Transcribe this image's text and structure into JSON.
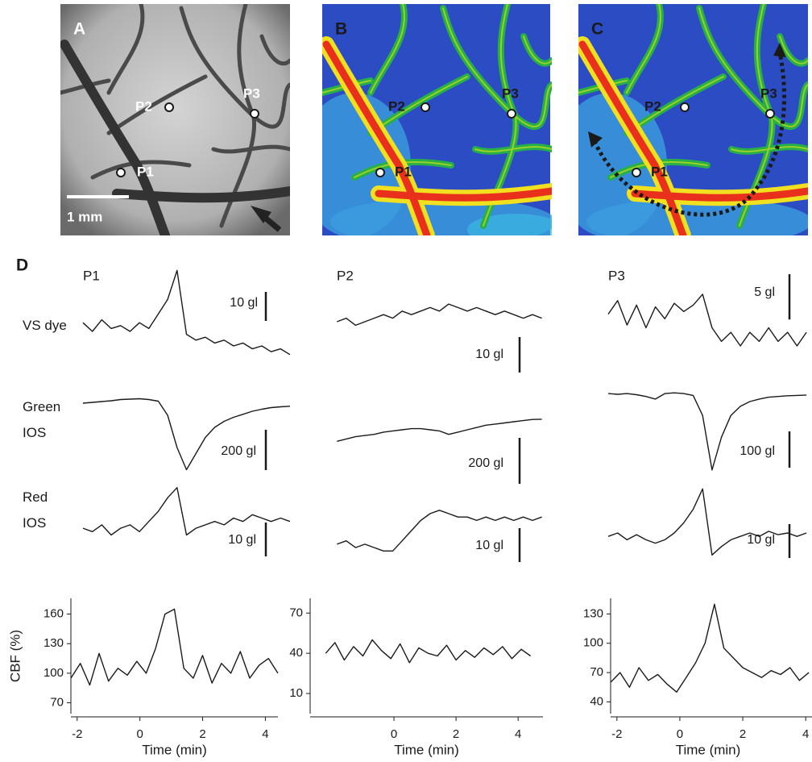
{
  "images": [
    {
      "label": "A",
      "points": [
        "P1",
        "P2",
        "P3"
      ],
      "scale_bar": "1 mm"
    },
    {
      "label": "B",
      "points": [
        "P1",
        "P2",
        "P3"
      ]
    },
    {
      "label": "C",
      "points": [
        "P1",
        "P2",
        "P3"
      ]
    }
  ],
  "panel_label": "D",
  "columns": [
    "P1",
    "P2",
    "P3"
  ],
  "rows": [
    "VS dye",
    "Green IOS",
    "Red IOS"
  ],
  "chart_data": [
    {
      "type": "line",
      "x": [
        -2.2,
        -1.9,
        -1.6,
        -1.3,
        -1.0,
        -0.7,
        -0.4,
        -0.1,
        0.2,
        0.5,
        0.8,
        1.1,
        1.4,
        1.7,
        2.0,
        2.3,
        2.6,
        2.9,
        3.2,
        3.5,
        3.8,
        4.1,
        4.4
      ],
      "values": [
        1,
        -2,
        2,
        -1,
        0,
        -2,
        1,
        -1,
        4,
        9,
        19,
        -3,
        -5,
        -4,
        -6,
        -5,
        -7,
        -6,
        -8,
        -7,
        -9,
        -8,
        -10
      ],
      "ylim": [
        -17,
        20.5
      ],
      "scale_bar": {
        "value": 10,
        "label": "10 gl"
      },
      "color": "#1a1a1a"
    },
    {
      "type": "line",
      "x": [
        -2.2,
        -1.9,
        -1.6,
        -1.3,
        -1.0,
        -0.7,
        -0.4,
        -0.1,
        0.2,
        0.5,
        0.8,
        1.1,
        1.4,
        1.7,
        2.0,
        2.3,
        2.6,
        2.9,
        3.2,
        3.5,
        3.8,
        4.1,
        4.4
      ],
      "values": [
        0,
        4,
        8,
        12,
        18,
        20,
        22,
        18,
        10,
        -60,
        -220,
        -330,
        -250,
        -170,
        -120,
        -90,
        -70,
        -55,
        -40,
        -30,
        -22,
        -18,
        -15
      ],
      "ylim": [
        -360,
        80
      ],
      "scale_bar": {
        "value": 200,
        "label": "200 gl"
      },
      "color": "#1a1a1a"
    },
    {
      "type": "line",
      "x": [
        -2.2,
        -1.9,
        -1.6,
        -1.3,
        -1.0,
        -0.7,
        -0.4,
        -0.1,
        0.2,
        0.5,
        0.8,
        1.1,
        1.4,
        1.7,
        2.0,
        2.3,
        2.6,
        2.9,
        3.2,
        3.5,
        3.8,
        4.1,
        4.4
      ],
      "values": [
        0,
        -1,
        1,
        -2,
        0,
        1,
        -1,
        2,
        5,
        9,
        12,
        -2,
        0,
        1,
        2,
        1,
        3,
        2,
        4,
        3,
        2,
        3,
        2
      ],
      "ylim": [
        -8.3,
        14.3
      ],
      "scale_bar": {
        "value": 10,
        "label": "10 gl"
      },
      "color": "#1a1a1a"
    },
    {
      "type": "line",
      "x": [
        -2.2,
        -1.9,
        -1.6,
        -1.3,
        -1.0,
        -0.7,
        -0.4,
        -0.1,
        0.2,
        0.5,
        0.8,
        1.1,
        1.4,
        1.7,
        2.0,
        2.3,
        2.6,
        2.9,
        3.2,
        3.5,
        3.8,
        4.1,
        4.4
      ],
      "values": [
        95,
        110,
        88,
        120,
        92,
        105,
        98,
        112,
        100,
        125,
        160,
        165,
        105,
        95,
        118,
        90,
        110,
        100,
        122,
        95,
        108,
        115,
        100
      ],
      "xlim": [
        -2.2,
        4.4
      ],
      "ylim": [
        59,
        176
      ],
      "xticks": [
        -2,
        0,
        2,
        4
      ],
      "yticks": [
        70,
        100,
        130,
        160
      ],
      "xlabel": "Time (min)",
      "ylabel": "CBF (%)",
      "color": "#1a1a1a"
    },
    {
      "type": "line",
      "x": [
        -2.2,
        -1.9,
        -1.6,
        -1.3,
        -1.0,
        -0.7,
        -0.4,
        -0.1,
        0.2,
        0.5,
        0.8,
        1.1,
        1.4,
        1.7,
        2.0,
        2.3,
        2.6,
        2.9,
        3.2,
        3.5,
        3.8,
        4.1,
        4.4
      ],
      "values": [
        0,
        1,
        -1,
        0,
        1,
        2,
        1,
        3,
        2,
        3,
        4,
        3,
        5,
        4,
        3,
        4,
        3,
        2,
        3,
        2,
        1,
        2,
        1
      ],
      "ylim": [
        -15,
        15.7
      ],
      "scale_bar": {
        "value": 10,
        "label": "10 gl"
      },
      "color": "#1a1a1a"
    },
    {
      "type": "line",
      "x": [
        -2.2,
        -1.9,
        -1.6,
        -1.3,
        -1.0,
        -0.7,
        -0.4,
        -0.1,
        0.2,
        0.5,
        0.8,
        1.1,
        1.4,
        1.7,
        2.0,
        2.3,
        2.6,
        2.9,
        3.2,
        3.5,
        3.8,
        4.1,
        4.4
      ],
      "values": [
        0,
        10,
        20,
        25,
        30,
        40,
        45,
        50,
        55,
        55,
        50,
        45,
        30,
        40,
        50,
        60,
        70,
        75,
        80,
        85,
        90,
        95,
        96
      ],
      "ylim": [
        -150,
        236
      ],
      "scale_bar": {
        "value": 200,
        "label": "200 gl"
      },
      "color": "#1a1a1a"
    },
    {
      "type": "line",
      "x": [
        -2.2,
        -1.9,
        -1.6,
        -1.3,
        -1.0,
        -0.7,
        -0.4,
        -0.1,
        0.2,
        0.5,
        0.8,
        1.1,
        1.4,
        1.7,
        2.0,
        2.3,
        2.6,
        2.9,
        3.2,
        3.5,
        3.8,
        4.1,
        4.4
      ],
      "values": [
        0,
        1,
        -1,
        0,
        -1,
        -2,
        -2,
        1,
        4,
        7,
        9,
        10,
        9,
        8,
        8,
        7,
        8,
        7,
        8,
        7,
        8,
        7,
        8
      ],
      "ylim": [
        -3.6,
        19
      ],
      "scale_bar": {
        "value": 10,
        "label": "10 gl"
      },
      "color": "#1a1a1a"
    },
    {
      "type": "line",
      "x": [
        -2.2,
        -1.9,
        -1.6,
        -1.3,
        -1.0,
        -0.7,
        -0.4,
        -0.1,
        0.2,
        0.5,
        0.8,
        1.1,
        1.4,
        1.7,
        2.0,
        2.3,
        2.6,
        2.9,
        3.2,
        3.5,
        3.8,
        4.1,
        4.4
      ],
      "values": [
        40,
        48,
        35,
        45,
        38,
        50,
        42,
        36,
        47,
        33,
        44,
        40,
        38,
        46,
        35,
        42,
        37,
        44,
        39,
        45,
        36,
        43,
        38
      ],
      "xlim": [
        -2.7,
        4.8
      ],
      "ylim": [
        -5,
        81
      ],
      "xticks": [
        0,
        2,
        4
      ],
      "yticks": [
        10,
        40,
        70
      ],
      "xlabel": "Time (min)",
      "color": "#1a1a1a"
    },
    {
      "type": "line",
      "x": [
        -2.2,
        -1.9,
        -1.6,
        -1.3,
        -1.0,
        -0.7,
        -0.4,
        -0.1,
        0.2,
        0.5,
        0.8,
        1.1,
        1.4,
        1.7,
        2.0,
        2.3,
        2.6,
        2.9,
        3.2,
        3.5,
        3.8,
        4.1
      ],
      "values": [
        0,
        1.5,
        -1.2,
        1,
        -1.5,
        0.8,
        -0.5,
        1.2,
        0.3,
        1,
        2.2,
        -1.5,
        -3,
        -2,
        -3.5,
        -2,
        -3,
        -1.5,
        -3,
        -2,
        -3.5,
        -2
      ],
      "ylim": [
        -6.7,
        5.3
      ],
      "scale_bar": {
        "value": 5,
        "label": "5 gl"
      },
      "color": "#1a1a1a"
    },
    {
      "type": "line",
      "x": [
        -2.2,
        -1.9,
        -1.6,
        -1.3,
        -1.0,
        -0.7,
        -0.4,
        -0.1,
        0.2,
        0.5,
        0.8,
        1.1,
        1.4,
        1.7,
        2.0,
        2.3,
        2.6,
        2.9,
        3.2,
        3.5,
        3.8,
        4.1
      ],
      "values": [
        0,
        -2,
        0,
        -3,
        -8,
        -15,
        0,
        2,
        0,
        -5,
        -60,
        -210,
        -120,
        -60,
        -35,
        -22,
        -15,
        -10,
        -8,
        -6,
        -5,
        -4
      ],
      "ylim": [
        -226,
        18
      ],
      "scale_bar": {
        "value": 100,
        "label": "100 gl"
      },
      "color": "#1a1a1a"
    },
    {
      "type": "line",
      "x": [
        -2.2,
        -1.9,
        -1.6,
        -1.3,
        -1.0,
        -0.7,
        -0.4,
        -0.1,
        0.2,
        0.5,
        0.8,
        1.1,
        1.4,
        1.7,
        2.0,
        2.3,
        2.6,
        2.9,
        3.2,
        3.5,
        3.8,
        4.1
      ],
      "values": [
        0,
        1,
        -1,
        0.5,
        -1,
        -2,
        -1,
        1,
        4,
        8,
        14,
        -5.5,
        -3,
        -1,
        0,
        1,
        0,
        1.5,
        0.5,
        1,
        0,
        1
      ],
      "ylim": [
        -5.9,
        16.7
      ],
      "scale_bar": {
        "value": 10,
        "label": "10 gl"
      },
      "color": "#1a1a1a"
    },
    {
      "type": "line",
      "x": [
        -2.2,
        -1.9,
        -1.6,
        -1.3,
        -1.0,
        -0.7,
        -0.4,
        -0.1,
        0.2,
        0.5,
        0.8,
        1.1,
        1.4,
        1.7,
        2.0,
        2.3,
        2.6,
        2.9,
        3.2,
        3.5,
        3.8,
        4.1
      ],
      "values": [
        60,
        70,
        55,
        75,
        62,
        68,
        58,
        50,
        65,
        80,
        100,
        140,
        95,
        85,
        75,
        70,
        65,
        72,
        68,
        75,
        62,
        70
      ],
      "xlim": [
        -2.2,
        4.2
      ],
      "ylim": [
        28,
        146
      ],
      "xticks": [
        -2,
        0,
        2,
        4
      ],
      "yticks": [
        40,
        70,
        100,
        130
      ],
      "xlabel": "Time (min)",
      "color": "#1a1a1a"
    }
  ]
}
